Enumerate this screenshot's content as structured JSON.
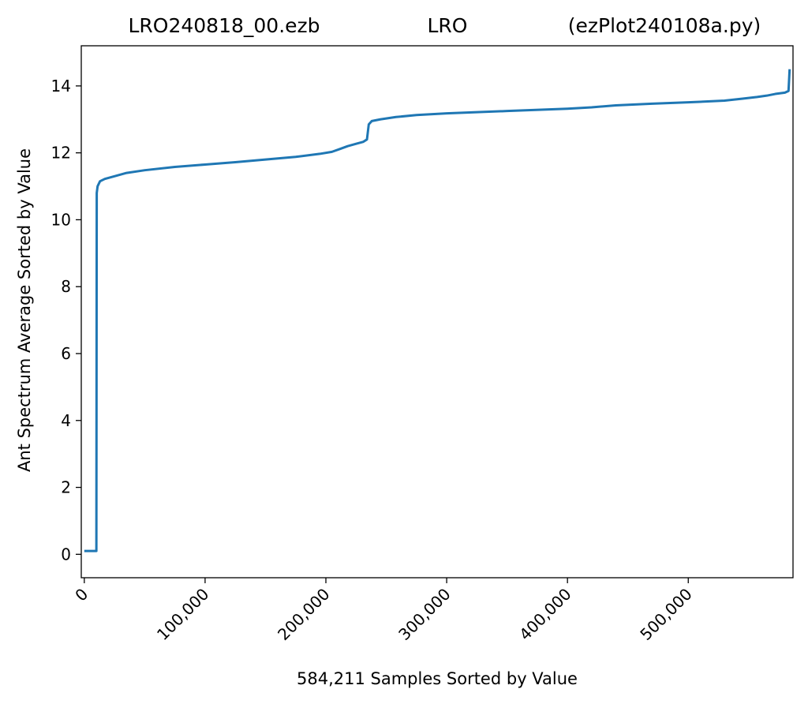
{
  "chart_data": {
    "type": "line",
    "title_parts": [
      "LRO240818_00.ezb",
      "LRO",
      "(ezPlot240108a.py)"
    ],
    "xlabel": "584,211 Samples Sorted by Value",
    "ylabel": "Ant Spectrum Average Sorted by Value",
    "xlim": [
      -2500,
      586711
    ],
    "ylim": [
      -0.7,
      15.2
    ],
    "xticks": [
      {
        "value": 0,
        "label": "0"
      },
      {
        "value": 100000,
        "label": "100,000"
      },
      {
        "value": 200000,
        "label": "200,000"
      },
      {
        "value": 300000,
        "label": "300,000"
      },
      {
        "value": 400000,
        "label": "400,000"
      },
      {
        "value": 500000,
        "label": "500,000"
      }
    ],
    "yticks": [
      {
        "value": 0,
        "label": "0"
      },
      {
        "value": 2,
        "label": "2"
      },
      {
        "value": 4,
        "label": "4"
      },
      {
        "value": 6,
        "label": "6"
      },
      {
        "value": 8,
        "label": "8"
      },
      {
        "value": 10,
        "label": "10"
      },
      {
        "value": 12,
        "label": "12"
      },
      {
        "value": 14,
        "label": "14"
      }
    ],
    "grid": false,
    "series": [
      {
        "color": "#1f77b4",
        "points": [
          [
            0,
            0.1
          ],
          [
            10000,
            0.1
          ],
          [
            10300,
            10.8
          ],
          [
            11000,
            11.0
          ],
          [
            13000,
            11.15
          ],
          [
            17000,
            11.22
          ],
          [
            25000,
            11.3
          ],
          [
            35000,
            11.4
          ],
          [
            50000,
            11.48
          ],
          [
            75000,
            11.58
          ],
          [
            100000,
            11.65
          ],
          [
            125000,
            11.72
          ],
          [
            150000,
            11.8
          ],
          [
            175000,
            11.88
          ],
          [
            195000,
            11.97
          ],
          [
            205000,
            12.03
          ],
          [
            212000,
            12.12
          ],
          [
            218000,
            12.2
          ],
          [
            225000,
            12.27
          ],
          [
            231000,
            12.33
          ],
          [
            234000,
            12.4
          ],
          [
            235500,
            12.85
          ],
          [
            238000,
            12.95
          ],
          [
            245000,
            13.0
          ],
          [
            258000,
            13.07
          ],
          [
            275000,
            13.13
          ],
          [
            300000,
            13.18
          ],
          [
            350000,
            13.25
          ],
          [
            400000,
            13.32
          ],
          [
            420000,
            13.36
          ],
          [
            440000,
            13.42
          ],
          [
            470000,
            13.47
          ],
          [
            500000,
            13.51
          ],
          [
            530000,
            13.56
          ],
          [
            545000,
            13.62
          ],
          [
            557000,
            13.67
          ],
          [
            565000,
            13.71
          ],
          [
            572000,
            13.76
          ],
          [
            580000,
            13.8
          ],
          [
            583000,
            13.85
          ],
          [
            583900,
            14.5
          ]
        ]
      }
    ]
  }
}
